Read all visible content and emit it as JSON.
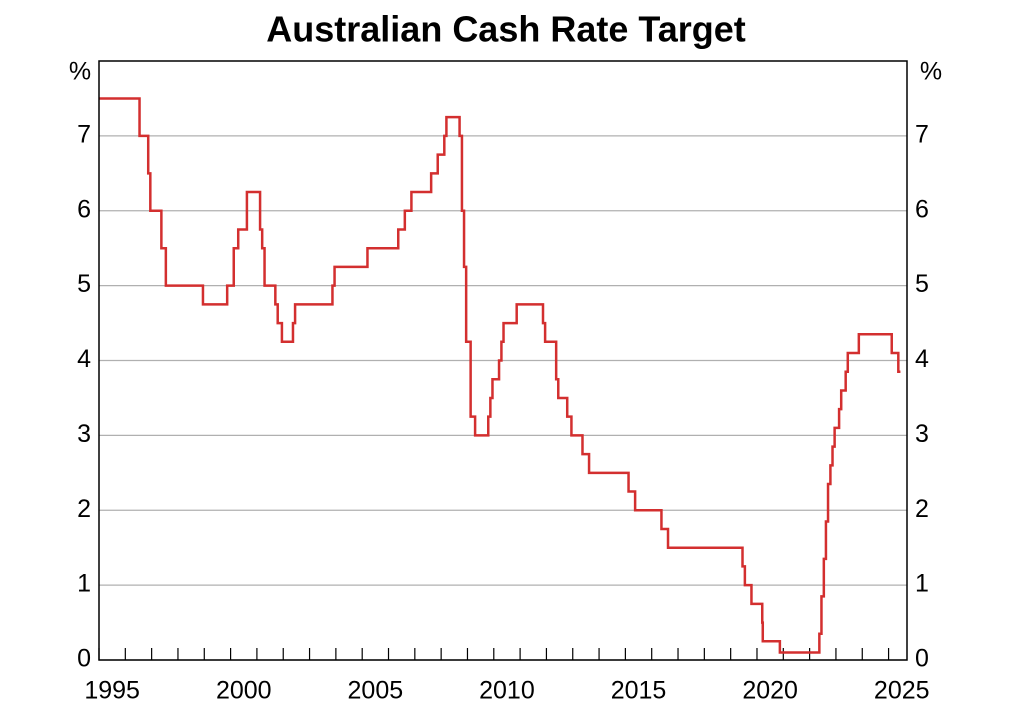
{
  "chart_data": {
    "type": "line",
    "step": "post",
    "title": "Australian Cash Rate Target",
    "y_unit_left": "%",
    "y_unit_right": "%",
    "series": [
      {
        "name": "Cash Rate Target",
        "color": "#d32f2f",
        "x": [
          1995.0,
          1996.54,
          1996.87,
          1996.95,
          1997.37,
          1997.54,
          1998.95,
          1999.87,
          2000.12,
          2000.29,
          2000.62,
          2001.12,
          2001.2,
          2001.29,
          2001.7,
          2001.79,
          2001.95,
          2002.37,
          2002.45,
          2003.87,
          2003.95,
          2005.2,
          2006.37,
          2006.62,
          2006.87,
          2007.62,
          2007.87,
          2008.12,
          2008.2,
          2008.7,
          2008.79,
          2008.87,
          2008.95,
          2009.12,
          2009.29,
          2009.79,
          2009.87,
          2009.95,
          2010.2,
          2010.29,
          2010.37,
          2010.87,
          2011.87,
          2011.95,
          2012.37,
          2012.45,
          2012.79,
          2012.95,
          2013.37,
          2013.62,
          2015.12,
          2015.37,
          2016.37,
          2016.62,
          2019.45,
          2019.54,
          2019.79,
          2020.2,
          2020.22,
          2020.87,
          2022.37,
          2022.45,
          2022.54,
          2022.62,
          2022.7,
          2022.79,
          2022.87,
          2022.95,
          2023.12,
          2023.2,
          2023.37,
          2023.45,
          2023.87,
          2025.12,
          2025.37,
          2025.45
        ],
        "values": [
          7.5,
          7.0,
          6.5,
          6.0,
          5.5,
          5.0,
          4.75,
          5.0,
          5.5,
          5.75,
          6.25,
          5.75,
          5.5,
          5.0,
          4.75,
          4.5,
          4.25,
          4.5,
          4.75,
          5.0,
          5.25,
          5.5,
          5.75,
          6.0,
          6.25,
          6.5,
          6.75,
          7.0,
          7.25,
          7.0,
          6.0,
          5.25,
          4.25,
          3.25,
          3.0,
          3.25,
          3.5,
          3.75,
          4.0,
          4.25,
          4.5,
          4.75,
          4.5,
          4.25,
          3.75,
          3.5,
          3.25,
          3.0,
          2.75,
          2.5,
          2.25,
          2.0,
          1.75,
          1.5,
          1.25,
          1.0,
          0.75,
          0.5,
          0.25,
          0.1,
          0.35,
          0.85,
          1.35,
          1.85,
          2.35,
          2.6,
          2.85,
          3.1,
          3.35,
          3.6,
          3.85,
          4.1,
          4.35,
          4.1,
          3.85,
          3.85
        ]
      }
    ],
    "xlim": [
      1995,
      2025.7
    ],
    "xticks": [
      1995,
      1996,
      1997,
      1998,
      1999,
      2000,
      2001,
      2002,
      2003,
      2004,
      2005,
      2006,
      2007,
      2008,
      2009,
      2010,
      2011,
      2012,
      2013,
      2014,
      2015,
      2016,
      2017,
      2018,
      2019,
      2020,
      2021,
      2022,
      2023,
      2024,
      2025
    ],
    "xticklabels": [
      {
        "value": 1995.5,
        "label": "1995"
      },
      {
        "value": 2000.5,
        "label": "2000"
      },
      {
        "value": 2005.5,
        "label": "2005"
      },
      {
        "value": 2010.5,
        "label": "2010"
      },
      {
        "value": 2015.5,
        "label": "2015"
      },
      {
        "value": 2020.5,
        "label": "2020"
      },
      {
        "value": 2025.5,
        "label": "2025"
      }
    ],
    "ylim": [
      0,
      8
    ],
    "yticks": [
      0,
      1,
      2,
      3,
      4,
      5,
      6,
      7
    ],
    "grid": true
  }
}
